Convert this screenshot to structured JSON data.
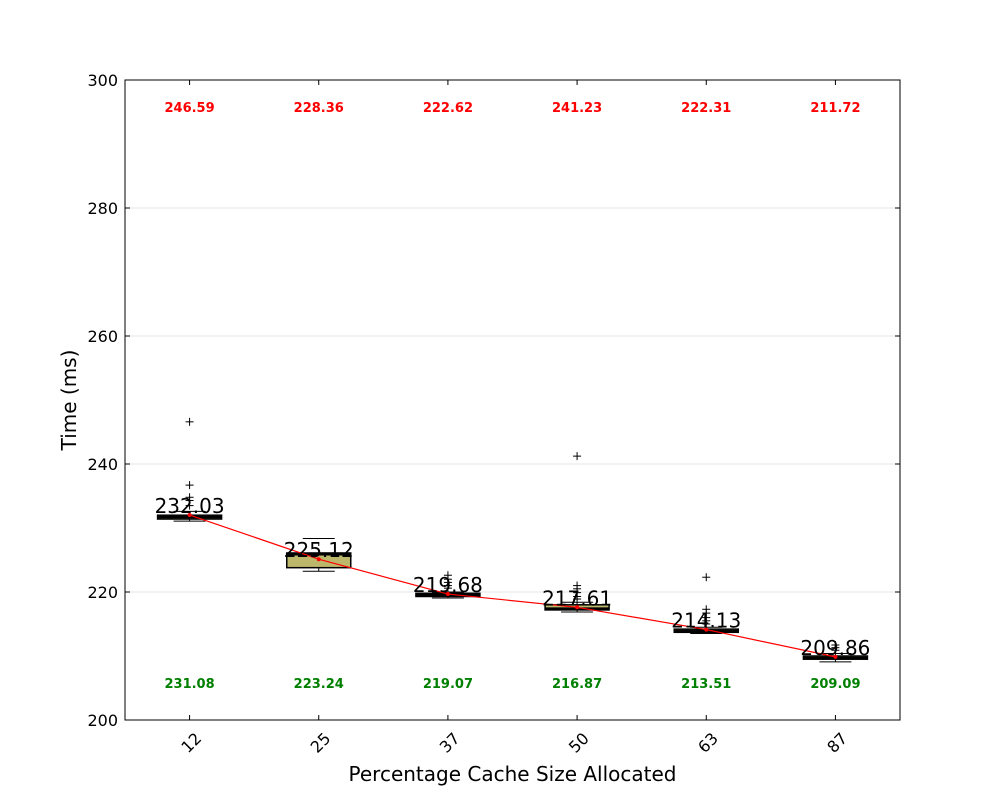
{
  "chart_data": {
    "type": "box",
    "xlabel": "Percentage Cache Size Allocated",
    "ylabel": "Time (ms)",
    "ylim": [
      200,
      300
    ],
    "yticks": [
      200,
      220,
      240,
      260,
      280,
      300
    ],
    "grid": "horizontal",
    "categories": [
      "12",
      "25",
      "37",
      "50",
      "63",
      "87"
    ],
    "max_labels": [
      "246.59",
      "228.36",
      "222.62",
      "241.23",
      "222.31",
      "211.72"
    ],
    "min_labels": [
      "231.08",
      "223.24",
      "219.07",
      "216.87",
      "213.51",
      "209.09"
    ],
    "mean_labels": [
      "232.03",
      "225.12",
      "219.68",
      "217.61",
      "214.13",
      "209.86"
    ],
    "means": [
      232.03,
      225.12,
      219.68,
      217.61,
      214.13,
      209.86
    ],
    "boxes": [
      {
        "whisker_low": 231.08,
        "q1": 231.4,
        "median": 231.7,
        "q3": 232.0,
        "whisker_high": 232.6,
        "outliers": [
          246.59,
          236.7,
          234.8,
          234.3,
          233.5
        ]
      },
      {
        "whisker_low": 223.24,
        "q1": 223.8,
        "median": 225.9,
        "q3": 226.1,
        "whisker_high": 228.36,
        "outliers": []
      },
      {
        "whisker_low": 219.07,
        "q1": 219.3,
        "median": 219.5,
        "q3": 219.8,
        "whisker_high": 220.0,
        "outliers": [
          222.62,
          222.0,
          221.5,
          221.0,
          220.6
        ]
      },
      {
        "whisker_low": 216.87,
        "q1": 217.2,
        "median": 217.4,
        "q3": 218.0,
        "whisker_high": 218.4,
        "outliers": [
          241.23,
          221.0,
          220.5,
          219.9,
          219.3,
          218.9
        ]
      },
      {
        "whisker_low": 213.51,
        "q1": 213.7,
        "median": 213.9,
        "q3": 214.2,
        "whisker_high": 214.5,
        "outliers": [
          222.31,
          217.3,
          216.7,
          216.0,
          215.5,
          215.0
        ]
      },
      {
        "whisker_low": 209.09,
        "q1": 209.5,
        "median": 209.7,
        "q3": 210.0,
        "whisker_high": 210.4,
        "outliers": [
          211.72,
          211.3,
          210.9
        ]
      }
    ],
    "colors": {
      "box_fill": "#bdb76b",
      "median": "#000000",
      "mean_line": "#ff0000",
      "max_label": "#ff0000",
      "min_label": "#008000"
    }
  }
}
